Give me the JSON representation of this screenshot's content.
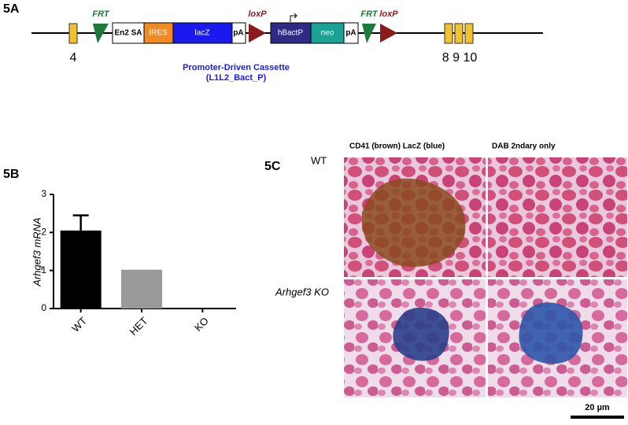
{
  "panel_a": {
    "label": "5A",
    "exon_left": "4",
    "exon_right": "8 9 10",
    "frt": [
      "FRT",
      "FRT"
    ],
    "loxp": [
      "loxP",
      "loxP"
    ],
    "boxes": [
      "En2 SA",
      "IRES",
      "lacZ",
      "pA",
      "hBactP",
      "neo",
      "pA"
    ],
    "cassette_title": "Promoter-Driven Cassette",
    "cassette_id": "(L1L2_Bact_P)"
  },
  "panel_b": {
    "label": "5B"
  },
  "chart_data": {
    "type": "bar",
    "ylabel": "Arhgef3 mRNA",
    "categories": [
      "WT",
      "HET",
      "KO"
    ],
    "values": [
      2.05,
      1.02,
      0
    ],
    "errors": [
      0.4,
      null,
      null
    ],
    "colors": [
      "#000000",
      "#999999",
      "#999999"
    ],
    "ylim": [
      0,
      3
    ],
    "yticks": [
      0,
      1,
      2,
      3
    ],
    "grid": false
  },
  "panel_c": {
    "label": "5C",
    "columns": [
      "CD41 (brown) LacZ (blue)",
      "DAB 2ndary only"
    ],
    "rows": [
      "WT",
      "Arhgef3 KO"
    ],
    "scale_bar": "20 µm"
  }
}
